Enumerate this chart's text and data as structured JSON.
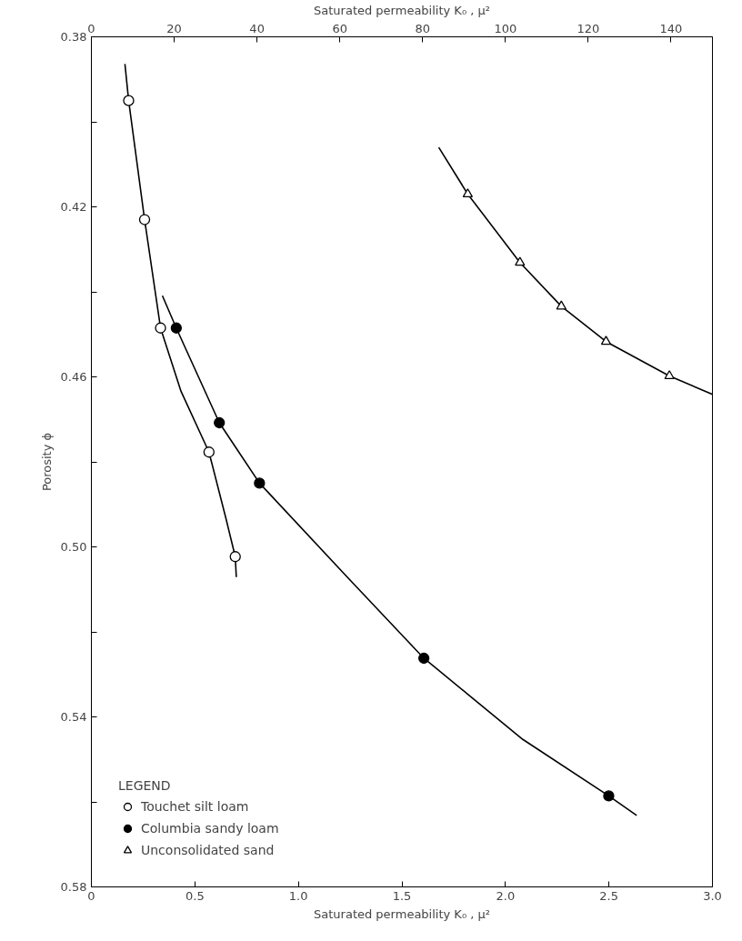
{
  "chart_data": {
    "type": "line",
    "xlabel": "Saturated permeability K₀ , μ²",
    "x2label": "Saturated permeability K₀ , μ²",
    "ylabel": "Porosity ϕ",
    "legend_title": "LEGEND",
    "xlim": [
      0,
      3.0
    ],
    "xticks": [
      0,
      0.5,
      {
        "value": 1.0,
        "label": "1.0"
      },
      1.5,
      {
        "value": 2.0,
        "label": "2.0"
      },
      2.5,
      {
        "value": 3.0,
        "label": "3.0"
      }
    ],
    "x2lim": [
      0,
      150
    ],
    "x2ticks": [
      0,
      20,
      40,
      60,
      80,
      100,
      120,
      140
    ],
    "ylim": [
      0.58,
      0.38
    ],
    "yticks": [
      0.38,
      {
        "value": 0.4,
        "label": null
      },
      0.42,
      {
        "value": 0.44,
        "label": null
      },
      0.46,
      {
        "value": 0.48,
        "label": null
      },
      {
        "value": 0.5,
        "label": "0.50"
      },
      {
        "value": 0.52,
        "label": null
      },
      0.54,
      {
        "value": 0.56,
        "label": null
      },
      0.58
    ],
    "grid": false,
    "legend": "bottom left",
    "series": [
      {
        "color": "#000000",
        "marker": "none",
        "x": [
          0.162,
          0.18,
          0.257,
          0.334,
          0.433,
          0.568,
          0.65,
          0.695,
          0.7
        ],
        "values": [
          0.3864,
          0.395,
          0.423,
          0.4485,
          0.4634,
          0.4777,
          0.4933,
          0.5023,
          0.5071
        ]
      },
      {
        "color": "#000000",
        "marker": "none",
        "x": [
          0.343,
          0.41,
          0.618,
          0.812,
          1.236,
          1.606,
          2.084,
          2.499,
          2.634
        ],
        "values": [
          0.4409,
          0.4485,
          0.4708,
          0.485,
          0.5071,
          0.5262,
          0.5453,
          0.5586,
          0.5632
        ]
      },
      {
        "color": "#000000",
        "marker": "none",
        "axis": "x2",
        "x": [
          83.9,
          90.9,
          103.5,
          113.5,
          124.3,
          139.6,
          150
        ],
        "values": [
          0.406,
          0.417,
          0.4331,
          0.4434,
          0.4517,
          0.4598,
          0.4641
        ]
      },
      {
        "type": "scatter",
        "name": "Touchet silt loam",
        "color": "#ffffff",
        "marker": "circle",
        "x": [
          0.18,
          0.257,
          0.334,
          0.568,
          0.695
        ],
        "values": [
          0.395,
          0.423,
          0.4485,
          0.4777,
          0.5023
        ]
      },
      {
        "type": "scatter",
        "name": "Columbia sandy loam",
        "color": "#000000",
        "marker": "circle",
        "x": [
          0.41,
          0.618,
          0.812,
          1.606,
          2.499
        ],
        "values": [
          0.4485,
          0.4708,
          0.485,
          0.5262,
          0.5586
        ]
      },
      {
        "type": "scatter",
        "name": "Unconsolidated sand",
        "color": "#ffffff",
        "marker": "triangle",
        "axis": "x2",
        "x": [
          90.9,
          103.5,
          113.5,
          124.3,
          139.6
        ],
        "values": [
          0.417,
          0.4331,
          0.4434,
          0.4517,
          0.4598
        ]
      }
    ]
  }
}
